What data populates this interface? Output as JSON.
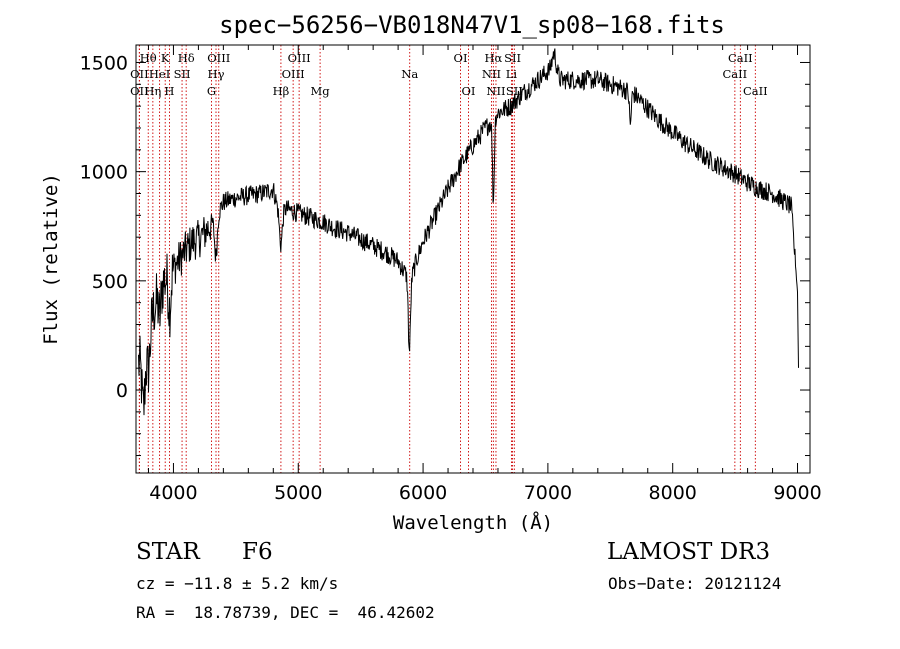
{
  "chart_data": {
    "type": "line",
    "title": "spec−56256−VB018N47V1_sp08−168.fits",
    "xlabel": "Wavelength (Å)",
    "ylabel": "Flux (relative)",
    "xlim": [
      3700,
      9100
    ],
    "ylim": [
      -380,
      1580
    ],
    "xticks": [
      4000,
      5000,
      6000,
      7000,
      8000,
      9000
    ],
    "yticks": [
      0,
      500,
      1000,
      1500
    ],
    "grid": false,
    "line_color": "#000000",
    "marker_color": "#cc0000",
    "spectrum_anchors": [
      [
        3720,
        120
      ],
      [
        3760,
        160
      ],
      [
        3800,
        280
      ],
      [
        3850,
        380
      ],
      [
        3900,
        480
      ],
      [
        3950,
        520
      ],
      [
        4000,
        560
      ],
      [
        4050,
        600
      ],
      [
        4100,
        640
      ],
      [
        4150,
        680
      ],
      [
        4200,
        690
      ],
      [
        4250,
        720
      ],
      [
        4300,
        760
      ],
      [
        4350,
        800
      ],
      [
        4400,
        860
      ],
      [
        4500,
        880
      ],
      [
        4600,
        890
      ],
      [
        4700,
        900
      ],
      [
        4800,
        920
      ],
      [
        4850,
        800
      ],
      [
        4900,
        830
      ],
      [
        5000,
        810
      ],
      [
        5100,
        790
      ],
      [
        5200,
        770
      ],
      [
        5300,
        740
      ],
      [
        5400,
        720
      ],
      [
        5500,
        690
      ],
      [
        5600,
        660
      ],
      [
        5700,
        630
      ],
      [
        5800,
        590
      ],
      [
        5850,
        540
      ],
      [
        5900,
        500
      ],
      [
        5950,
        600
      ],
      [
        6000,
        680
      ],
      [
        6100,
        800
      ],
      [
        6200,
        920
      ],
      [
        6300,
        1030
      ],
      [
        6400,
        1120
      ],
      [
        6500,
        1200
      ],
      [
        6560,
        1240
      ],
      [
        6600,
        1270
      ],
      [
        6700,
        1300
      ],
      [
        6800,
        1360
      ],
      [
        6900,
        1410
      ],
      [
        7000,
        1460
      ],
      [
        7100,
        1420
      ],
      [
        7200,
        1420
      ],
      [
        7300,
        1420
      ],
      [
        7400,
        1420
      ],
      [
        7500,
        1400
      ],
      [
        7600,
        1380
      ],
      [
        7700,
        1350
      ],
      [
        7800,
        1290
      ],
      [
        7900,
        1230
      ],
      [
        8000,
        1180
      ],
      [
        8100,
        1130
      ],
      [
        8200,
        1090
      ],
      [
        8300,
        1050
      ],
      [
        8400,
        1020
      ],
      [
        8500,
        990
      ],
      [
        8600,
        950
      ],
      [
        8700,
        920
      ],
      [
        8800,
        900
      ],
      [
        8900,
        860
      ],
      [
        8950,
        840
      ],
      [
        9000,
        450
      ],
      [
        9010,
        10
      ]
    ],
    "spectrum_dips": [
      [
        3760,
        -250,
        18
      ],
      [
        3800,
        -180,
        18
      ],
      [
        3890,
        -120,
        15
      ],
      [
        3970,
        -160,
        15
      ],
      [
        4340,
        -180,
        15
      ],
      [
        4861,
        -140,
        15
      ],
      [
        5890,
        -330,
        12
      ],
      [
        6563,
        -380,
        10
      ],
      [
        7050,
        100,
        25
      ],
      [
        7660,
        -150,
        10
      ]
    ],
    "lines": [
      {
        "label": "Hθ",
        "x": 3798,
        "row": 0
      },
      {
        "label": "OII",
        "x": 3727,
        "row": 1
      },
      {
        "label": "OII",
        "x": 3727,
        "row": 2
      },
      {
        "label": "K",
        "x": 3934,
        "row": 0
      },
      {
        "label": "HeI",
        "x": 3889,
        "row": 1
      },
      {
        "label": "Hη",
        "x": 3835,
        "row": 2
      },
      {
        "label": "Hδ",
        "x": 4102,
        "row": 0
      },
      {
        "label": "SII",
        "x": 4069,
        "row": 1
      },
      {
        "label": "H",
        "x": 3968,
        "row": 2
      },
      {
        "label": "OIII",
        "x": 4363,
        "row": 0
      },
      {
        "label": "Hγ",
        "x": 4341,
        "row": 1
      },
      {
        "label": "G",
        "x": 4305,
        "row": 2
      },
      {
        "label": "Hβ",
        "x": 4861,
        "row": 2
      },
      {
        "label": "OIII",
        "x": 5007,
        "row": 0
      },
      {
        "label": "OIII",
        "x": 4959,
        "row": 1
      },
      {
        "label": "Mg",
        "x": 5175,
        "row": 2
      },
      {
        "label": "Na",
        "x": 5893,
        "row": 1
      },
      {
        "label": "OI",
        "x": 6300,
        "row": 0
      },
      {
        "label": "OI",
        "x": 6364,
        "row": 2
      },
      {
        "label": "Hα",
        "x": 6563,
        "row": 0
      },
      {
        "label": "NII",
        "x": 6548,
        "row": 1
      },
      {
        "label": "NII",
        "x": 6584,
        "row": 2
      },
      {
        "label": "SII",
        "x": 6717,
        "row": 0
      },
      {
        "label": "Li",
        "x": 6708,
        "row": 1
      },
      {
        "label": "SII",
        "x": 6731,
        "row": 2
      },
      {
        "label": "CaII",
        "x": 8542,
        "row": 0
      },
      {
        "label": "CaII",
        "x": 8498,
        "row": 1
      },
      {
        "label": "CaII",
        "x": 8662,
        "row": 2
      }
    ]
  },
  "footer": {
    "class": "STAR",
    "subclass": "F6",
    "survey": "LAMOST DR3",
    "cz": "cz = −11.8 ± 5.2 km/s",
    "obs_date": "Obs−Date: 20121124",
    "radec": "RA =  18.78739, DEC =  46.42602"
  }
}
